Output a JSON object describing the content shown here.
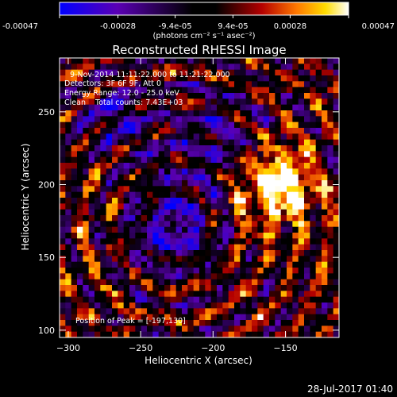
{
  "colorbar": {
    "tick_labels": [
      "-0.00047",
      "-0.00028",
      "-9.4e-05",
      "9.4e-05",
      "0.00028",
      "0.00047"
    ],
    "tick_values": [
      -0.00047,
      -0.00028,
      -9.4e-05,
      9.4e-05,
      0.00028,
      0.00047
    ],
    "range": [
      -0.00047,
      0.00047
    ],
    "units_label": "(photons cm⁻² s⁻¹ asec⁻²)",
    "colors": [
      "#0000ff",
      "#5a00b4",
      "#000000",
      "#b40000",
      "#ff7800",
      "#ffdc00",
      "#ffffff"
    ]
  },
  "chart_data": {
    "type": "heatmap",
    "title": "Reconstructed RHESSI Image",
    "xlabel": "Heliocentric X (arcsec)",
    "ylabel": "Heliocentric Y (arcsec)",
    "xlim": [
      -306,
      -113
    ],
    "ylim": [
      95,
      287
    ],
    "x_ticks": [
      -300,
      -250,
      -200,
      -150
    ],
    "x_tick_labels": [
      "−300",
      "−250",
      "−200",
      "−150"
    ],
    "y_ticks": [
      100,
      150,
      200,
      250
    ],
    "y_tick_labels": [
      "100",
      "150",
      "200",
      "250"
    ],
    "annotations": [
      "9-Nov-2014 11:11:22.000 to 11:21:22.000",
      "Detectors: 3F 6F 9F, Att 0",
      "Energy Range: 12.0 - 25.0 keV",
      "Clean    Total counts: 7.43E+03"
    ],
    "peak_label": "Position of Peak = [-197,130]",
    "peak": [
      -197,
      130
    ]
  },
  "footer": {
    "timestamp": "28-Jul-2017 01:40"
  }
}
